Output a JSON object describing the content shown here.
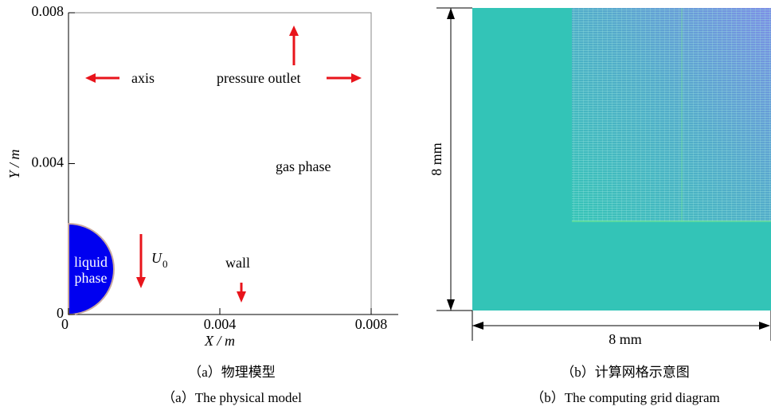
{
  "panels": [
    {
      "xlim": [
        0,
        0.008
      ],
      "ylim": [
        0,
        0.008
      ],
      "xticks": [
        0,
        0.004,
        0.008
      ],
      "yticks": [
        0,
        0.004,
        0.008
      ],
      "xlabel": "X / m",
      "ylabel": "Y / m",
      "annotations": {
        "axis": "axis",
        "outlet": "pressure outlet",
        "gas": "gas phase",
        "wall": "wall",
        "liquid": [
          "liquid",
          "phase"
        ],
        "velocity": {
          "symbol": "U",
          "subscript": "0"
        }
      },
      "caption": {
        "zh": "（a）物理模型",
        "en": "（a）The physical model"
      }
    },
    {
      "height_label": "8 mm",
      "width_label": "8 mm",
      "caption": {
        "zh": "（b）计算网格示意图",
        "en": "（b）The computing grid diagram"
      }
    }
  ]
}
